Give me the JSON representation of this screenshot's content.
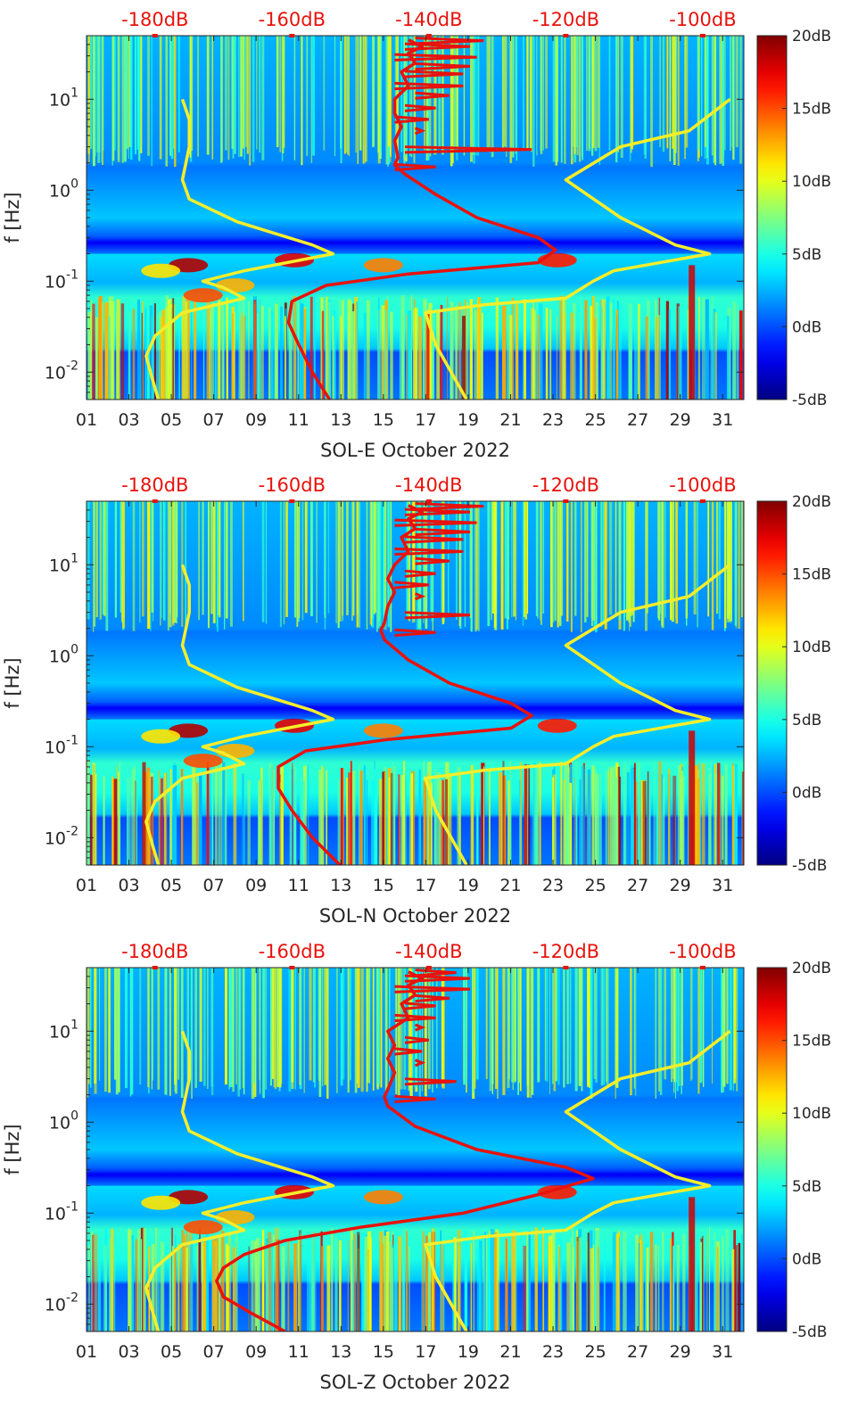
{
  "chart_data": [
    {
      "type": "heatmap",
      "xlabel": "SOL-E October 2022",
      "ylabel": "f [Hz]",
      "x_ticks": [
        "01",
        "03",
        "05",
        "07",
        "09",
        "11",
        "13",
        "15",
        "17",
        "19",
        "21",
        "23",
        "25",
        "27",
        "29",
        "31"
      ],
      "x_range_days": [
        1,
        32
      ],
      "y_scale": "log",
      "y_range_hz": [
        0.005,
        50
      ],
      "y_ticks": [
        {
          "base": "10",
          "exp": "-2"
        },
        {
          "base": "10",
          "exp": "-1"
        },
        {
          "base": "10",
          "exp": "0"
        },
        {
          "base": "10",
          "exp": "1"
        }
      ],
      "top_axis_ticks": [
        "-180dB",
        "-160dB",
        "-140dB",
        "-120dB",
        "-100dB"
      ],
      "top_axis_range_db": [
        -190,
        -94
      ],
      "colorbar": {
        "ticks": [
          "20dB",
          "15dB",
          "10dB",
          "5dB",
          "0dB",
          "-5dB"
        ],
        "range_db": [
          -5,
          20
        ],
        "colormap": "jet"
      },
      "series": [
        {
          "color": "#f5ee2a",
          "kind": "noise-model-low",
          "points": [
            [
              -179.5,
              0.005
            ],
            [
              -180.3,
              0.008
            ],
            [
              -181.3,
              0.015
            ],
            [
              -180,
              0.025
            ],
            [
              -176,
              0.045
            ],
            [
              -167,
              0.065
            ],
            [
              -170,
              0.085
            ],
            [
              -173,
              0.1
            ],
            [
              -167,
              0.13
            ],
            [
              -154,
              0.2
            ],
            [
              -157,
              0.25
            ],
            [
              -168,
              0.45
            ],
            [
              -175,
              0.8
            ],
            [
              -176,
              1.3
            ],
            [
              -175,
              3
            ],
            [
              -175,
              6
            ],
            [
              -176,
              10
            ]
          ]
        },
        {
          "color": "#f5ee2a",
          "kind": "noise-model-high",
          "points": [
            [
              -134.5,
              0.005
            ],
            [
              -139,
              0.02
            ],
            [
              -140.5,
              0.045
            ],
            [
              -132,
              0.055
            ],
            [
              -120,
              0.065
            ],
            [
              -116,
              0.1
            ],
            [
              -113,
              0.13
            ],
            [
              -99,
              0.2
            ],
            [
              -104,
              0.25
            ],
            [
              -112,
              0.5
            ],
            [
              -120,
              1.3
            ],
            [
              -112,
              3
            ],
            [
              -102,
              4.5
            ],
            [
              -96,
              10
            ]
          ]
        }
      ],
      "red_series": {
        "color": "#e8120c",
        "points": [
          [
            -154.5,
            0.005
          ],
          [
            -157,
            0.01
          ],
          [
            -159,
            0.02
          ],
          [
            -160.5,
            0.035
          ],
          [
            -160,
            0.06
          ],
          [
            -155,
            0.09
          ],
          [
            -143,
            0.12
          ],
          [
            -124,
            0.16
          ],
          [
            -121.5,
            0.22
          ],
          [
            -124,
            0.3
          ],
          [
            -133,
            0.5
          ],
          [
            -139,
            0.9
          ],
          [
            -143.5,
            1.5
          ],
          [
            -145,
            1.9
          ],
          [
            -144.5,
            2.3
          ],
          [
            -145,
            3.5
          ],
          [
            -144,
            5
          ],
          [
            -145,
            7
          ],
          [
            -145,
            10
          ],
          [
            -143,
            14
          ],
          [
            -144,
            20
          ],
          [
            -142,
            25
          ],
          [
            -143,
            32
          ],
          [
            -141,
            38
          ],
          [
            -143,
            45
          ]
        ],
        "spikes": [
          [
            1.8,
            -139
          ],
          [
            2.8,
            -125
          ],
          [
            4.5,
            -141
          ],
          [
            6,
            -140
          ],
          [
            8,
            -139
          ],
          [
            11,
            -137
          ],
          [
            14,
            -135
          ],
          [
            19,
            -135
          ],
          [
            23,
            -134
          ],
          [
            29,
            -133
          ],
          [
            38,
            -134
          ],
          [
            44,
            -132
          ]
        ]
      }
    },
    {
      "type": "heatmap",
      "xlabel": "SOL-N October 2022",
      "ylabel": "f [Hz]",
      "x_ticks": [
        "01",
        "03",
        "05",
        "07",
        "09",
        "11",
        "13",
        "15",
        "17",
        "19",
        "21",
        "23",
        "25",
        "27",
        "29",
        "31"
      ],
      "x_range_days": [
        1,
        32
      ],
      "y_scale": "log",
      "y_range_hz": [
        0.005,
        50
      ],
      "y_ticks": [
        {
          "base": "10",
          "exp": "-2"
        },
        {
          "base": "10",
          "exp": "-1"
        },
        {
          "base": "10",
          "exp": "0"
        },
        {
          "base": "10",
          "exp": "1"
        }
      ],
      "top_axis_ticks": [
        "-180dB",
        "-160dB",
        "-140dB",
        "-120dB",
        "-100dB"
      ],
      "top_axis_range_db": [
        -190,
        -94
      ],
      "colorbar": {
        "ticks": [
          "20dB",
          "15dB",
          "10dB",
          "5dB",
          "0dB",
          "-5dB"
        ],
        "range_db": [
          -5,
          20
        ],
        "colormap": "jet"
      },
      "series": [
        {
          "color": "#f5ee2a",
          "kind": "noise-model-low",
          "points": [
            [
              -179.5,
              0.005
            ],
            [
              -180.3,
              0.008
            ],
            [
              -181.3,
              0.015
            ],
            [
              -180,
              0.025
            ],
            [
              -176,
              0.045
            ],
            [
              -167,
              0.065
            ],
            [
              -170,
              0.085
            ],
            [
              -173,
              0.1
            ],
            [
              -167,
              0.13
            ],
            [
              -154,
              0.2
            ],
            [
              -157,
              0.25
            ],
            [
              -168,
              0.45
            ],
            [
              -175,
              0.8
            ],
            [
              -176,
              1.3
            ],
            [
              -175,
              3
            ],
            [
              -175,
              6
            ],
            [
              -176,
              10
            ]
          ]
        },
        {
          "color": "#f5ee2a",
          "kind": "noise-model-high",
          "points": [
            [
              -134.5,
              0.005
            ],
            [
              -139,
              0.02
            ],
            [
              -140.5,
              0.045
            ],
            [
              -132,
              0.055
            ],
            [
              -120,
              0.065
            ],
            [
              -116,
              0.1
            ],
            [
              -113,
              0.13
            ],
            [
              -99,
              0.2
            ],
            [
              -104,
              0.25
            ],
            [
              -112,
              0.5
            ],
            [
              -120,
              1.3
            ],
            [
              -112,
              3
            ],
            [
              -102,
              4.5
            ],
            [
              -96,
              10
            ]
          ]
        }
      ],
      "red_series": {
        "color": "#e8120c",
        "points": [
          [
            -153,
            0.005
          ],
          [
            -157,
            0.01
          ],
          [
            -160,
            0.02
          ],
          [
            -162,
            0.035
          ],
          [
            -162,
            0.06
          ],
          [
            -158,
            0.09
          ],
          [
            -146,
            0.12
          ],
          [
            -128,
            0.16
          ],
          [
            -125,
            0.22
          ],
          [
            -128,
            0.3
          ],
          [
            -137,
            0.5
          ],
          [
            -143,
            0.9
          ],
          [
            -146.5,
            1.5
          ],
          [
            -147,
            1.9
          ],
          [
            -146.5,
            2.3
          ],
          [
            -146,
            3.5
          ],
          [
            -145,
            5
          ],
          [
            -146,
            7
          ],
          [
            -145,
            10
          ],
          [
            -143,
            14
          ],
          [
            -144,
            20
          ],
          [
            -142,
            25
          ],
          [
            -143,
            32
          ],
          [
            -141,
            38
          ],
          [
            -143,
            45
          ]
        ],
        "spikes": [
          [
            1.8,
            -139
          ],
          [
            2.8,
            -134
          ],
          [
            4.5,
            -141
          ],
          [
            6,
            -140
          ],
          [
            8,
            -139
          ],
          [
            11,
            -137
          ],
          [
            14,
            -135
          ],
          [
            19,
            -135
          ],
          [
            23,
            -134
          ],
          [
            29,
            -133
          ],
          [
            38,
            -134
          ],
          [
            44,
            -132
          ]
        ]
      }
    },
    {
      "type": "heatmap",
      "xlabel": "SOL-Z October 2022",
      "ylabel": "f [Hz]",
      "x_ticks": [
        "01",
        "03",
        "05",
        "07",
        "09",
        "11",
        "13",
        "15",
        "17",
        "19",
        "21",
        "23",
        "25",
        "27",
        "29",
        "31"
      ],
      "x_range_days": [
        1,
        32
      ],
      "y_scale": "log",
      "y_range_hz": [
        0.005,
        50
      ],
      "y_ticks": [
        {
          "base": "10",
          "exp": "-2"
        },
        {
          "base": "10",
          "exp": "-1"
        },
        {
          "base": "10",
          "exp": "0"
        },
        {
          "base": "10",
          "exp": "1"
        }
      ],
      "top_axis_ticks": [
        "-180dB",
        "-160dB",
        "-140dB",
        "-120dB",
        "-100dB"
      ],
      "top_axis_range_db": [
        -190,
        -94
      ],
      "colorbar": {
        "ticks": [
          "20dB",
          "15dB",
          "10dB",
          "5dB",
          "0dB",
          "-5dB"
        ],
        "range_db": [
          -5,
          20
        ],
        "colormap": "jet"
      },
      "series": [
        {
          "color": "#f5ee2a",
          "kind": "noise-model-low",
          "points": [
            [
              -179.5,
              0.005
            ],
            [
              -180.3,
              0.008
            ],
            [
              -181.3,
              0.015
            ],
            [
              -180,
              0.025
            ],
            [
              -176,
              0.045
            ],
            [
              -167,
              0.065
            ],
            [
              -170,
              0.085
            ],
            [
              -173,
              0.1
            ],
            [
              -167,
              0.13
            ],
            [
              -154,
              0.2
            ],
            [
              -157,
              0.25
            ],
            [
              -168,
              0.45
            ],
            [
              -175,
              0.8
            ],
            [
              -176,
              1.3
            ],
            [
              -175,
              3
            ],
            [
              -175,
              6
            ],
            [
              -176,
              10
            ]
          ]
        },
        {
          "color": "#f5ee2a",
          "kind": "noise-model-high",
          "points": [
            [
              -134.5,
              0.005
            ],
            [
              -139,
              0.02
            ],
            [
              -140.5,
              0.045
            ],
            [
              -132,
              0.055
            ],
            [
              -120,
              0.065
            ],
            [
              -116,
              0.1
            ],
            [
              -113,
              0.13
            ],
            [
              -99,
              0.2
            ],
            [
              -104,
              0.25
            ],
            [
              -112,
              0.5
            ],
            [
              -120,
              1.3
            ],
            [
              -112,
              3
            ],
            [
              -102,
              4.5
            ],
            [
              -96,
              10
            ]
          ]
        }
      ],
      "red_series": {
        "color": "#e8120c",
        "points": [
          [
            -161,
            0.005
          ],
          [
            -166,
            0.008
          ],
          [
            -170,
            0.012
          ],
          [
            -171,
            0.018
          ],
          [
            -170,
            0.025
          ],
          [
            -167,
            0.035
          ],
          [
            -161,
            0.05
          ],
          [
            -150,
            0.07
          ],
          [
            -135,
            0.1
          ],
          [
            -124,
            0.16
          ],
          [
            -116,
            0.24
          ],
          [
            -120,
            0.32
          ],
          [
            -133,
            0.5
          ],
          [
            -142,
            0.9
          ],
          [
            -146,
            1.5
          ],
          [
            -146.5,
            1.9
          ],
          [
            -146,
            2.3
          ],
          [
            -145,
            3.5
          ],
          [
            -146,
            5
          ],
          [
            -145,
            7
          ],
          [
            -146,
            10
          ],
          [
            -143,
            14
          ],
          [
            -144,
            20
          ],
          [
            -142,
            25
          ],
          [
            -143,
            32
          ],
          [
            -141,
            38
          ],
          [
            -143,
            45
          ]
        ],
        "spikes": [
          [
            1.8,
            -139
          ],
          [
            2.8,
            -136
          ],
          [
            4.5,
            -141
          ],
          [
            6,
            -141
          ],
          [
            8,
            -140
          ],
          [
            11,
            -141
          ],
          [
            14,
            -139
          ],
          [
            19,
            -139
          ],
          [
            23,
            -137
          ],
          [
            29,
            -134
          ],
          [
            38,
            -134
          ],
          [
            44,
            -136
          ]
        ]
      }
    }
  ]
}
